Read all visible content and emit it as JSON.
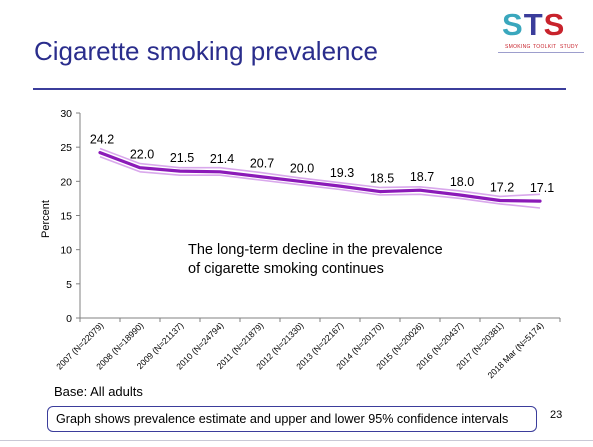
{
  "slide": {
    "title": "Cigarette smoking prevalence",
    "logo": {
      "letters": [
        "S",
        "T",
        "S"
      ],
      "subtitle": [
        "SMOKING",
        "TOOLKIT",
        "STUDY"
      ]
    },
    "annotation": [
      "The long-term decline in the prevalence",
      "of cigarette smoking continues"
    ],
    "base_note": "Base: All adults",
    "footnote": "Graph shows prevalence estimate and upper and lower 95% confidence intervals",
    "page_number": "23",
    "colors": {
      "title": "#2a2d8c",
      "accent_line": "#3b3d9b",
      "estimate": "#8b1ab8",
      "ci": "#d9a8ec",
      "logo_teal": "#3aa7bd",
      "logo_red": "#c8232c"
    }
  },
  "chart_data": {
    "type": "line",
    "ylabel": "Percent",
    "xlabel": "",
    "ylim": [
      0,
      30
    ],
    "yticks": [
      0,
      5,
      10,
      15,
      20,
      25,
      30
    ],
    "grid": false,
    "categories": [
      "2007 (N=22079)",
      "2008 (N=18990)",
      "2009 (N=21137)",
      "2010 (N=24794)",
      "2011 (N=21879)",
      "2012 (N=21330)",
      "2013 (N=22167)",
      "2014 (N=20170)",
      "2015 (N=20026)",
      "2016 (N=20437)",
      "2017 (N=20381)",
      "2018 Mar (N=5174)"
    ],
    "series": [
      {
        "role": "estimate",
        "values": [
          24.2,
          22.0,
          21.5,
          21.4,
          20.7,
          20.0,
          19.3,
          18.5,
          18.7,
          18.0,
          17.2,
          17.1
        ],
        "labels": [
          "24.2",
          "22.0",
          "21.5",
          "21.4",
          "20.7",
          "20.0",
          "19.3",
          "18.5",
          "18.7",
          "18.0",
          "17.2",
          "17.1"
        ]
      },
      {
        "role": "upper_ci",
        "values": [
          24.8,
          22.6,
          22.0,
          22.0,
          21.3,
          20.5,
          19.8,
          19.1,
          19.2,
          18.6,
          17.8,
          18.1
        ]
      },
      {
        "role": "lower_ci",
        "values": [
          23.6,
          21.4,
          20.9,
          20.9,
          20.2,
          19.5,
          18.8,
          18.0,
          18.1,
          17.5,
          16.7,
          16.1
        ]
      }
    ]
  }
}
